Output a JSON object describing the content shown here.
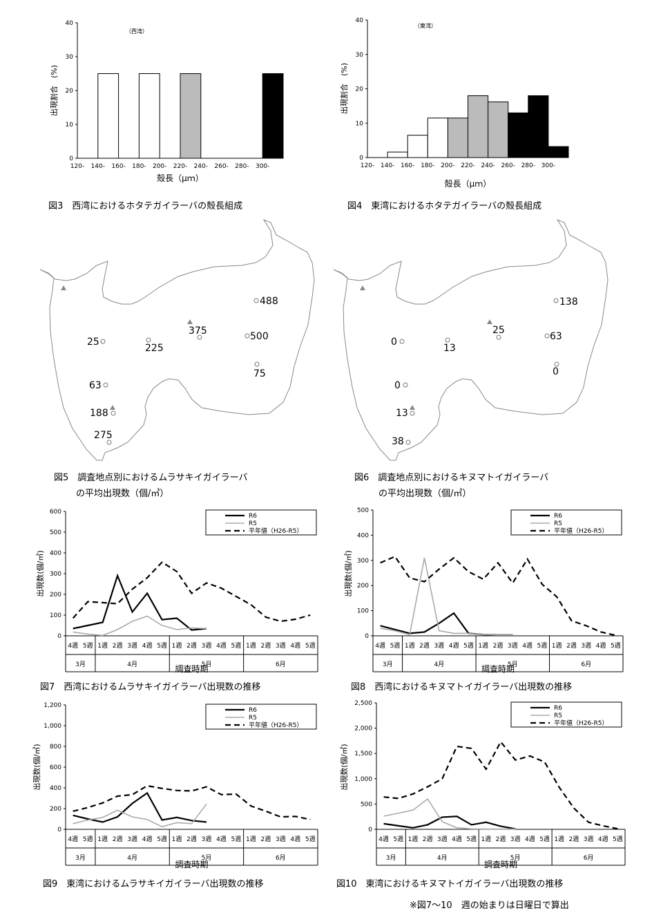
{
  "captions": {
    "fig3": "図3　西湾におけるホタテガイラーバの殻長組成",
    "fig4": "図4　東湾におけるホタテガイラーバの殻長組成",
    "fig5a": "図5　調査地点別におけるムラサキイガイラーバ",
    "fig5b": "の平均出現数（個/㎥）",
    "fig6a": "図6　調査地点別におけるキヌマトイガイラーバ",
    "fig6b": "の平均出現数（個/㎥）",
    "fig7": "図7　西湾におけるムラサキイガイラーバ出現数の推移",
    "fig8": "図8　西湾におけるキヌマトイガイラーバ出現数の推移",
    "fig9": "図9　東湾におけるムラサキイガイラーバ出現数の推移",
    "fig10": "図10　東湾におけるキヌマトイガイラーバ出現数の推移",
    "note": "※図7～10　週の始まりは日曜日で算出"
  },
  "maps": {
    "west": {
      "sites": [
        {
          "label": "488"
        },
        {
          "label": "375"
        },
        {
          "label": "500"
        },
        {
          "label": "25"
        },
        {
          "label": "225"
        },
        {
          "label": "75"
        },
        {
          "label": "63"
        },
        {
          "label": "188"
        },
        {
          "label": "275"
        }
      ]
    },
    "east": {
      "sites": [
        {
          "label": "138"
        },
        {
          "label": "25"
        },
        {
          "label": "63"
        },
        {
          "label": "0"
        },
        {
          "label": "13"
        },
        {
          "label": "0"
        },
        {
          "label": "0"
        },
        {
          "label": "13"
        },
        {
          "label": "38"
        }
      ]
    }
  },
  "chart_data": [
    {
      "id": "fig3",
      "type": "bar",
      "title": "",
      "inner_label": "（西湾）",
      "categories": [
        "120-",
        "140-",
        "160-",
        "180-",
        "200-",
        "220-",
        "240-",
        "260-",
        "280-",
        "300-"
      ],
      "values": [
        0,
        25,
        0,
        25,
        0,
        25,
        0,
        0,
        0,
        25
      ],
      "bar_fill": [
        "#fff",
        "#fff",
        "#fff",
        "#fff",
        "#fff",
        "#bbbbbb",
        "#bbbbbb",
        "#000",
        "#000",
        "#000"
      ],
      "xlabel": "殻長（μｍ）",
      "ylabel": "出現割合　(%)",
      "ylim": [
        0,
        40
      ],
      "yticks": [
        0,
        10,
        20,
        30,
        40
      ]
    },
    {
      "id": "fig4",
      "type": "bar",
      "title": "",
      "inner_label": "（東湾）",
      "categories": [
        "120-",
        "140-",
        "160-",
        "180-",
        "200-",
        "220-",
        "240-",
        "260-",
        "280-",
        "300-"
      ],
      "values": [
        0,
        1.6,
        6.5,
        11.5,
        11.5,
        18,
        16.2,
        13,
        18,
        3.2
      ],
      "bar_fill": [
        "#fff",
        "#fff",
        "#fff",
        "#fff",
        "#bbbbbb",
        "#bbbbbb",
        "#bbbbbb",
        "#000",
        "#000",
        "#000"
      ],
      "xlabel": "殻長（μｍ）",
      "ylabel": "出現割合　(%)",
      "ylim": [
        0,
        40
      ],
      "yticks": [
        0,
        10,
        20,
        30,
        40
      ]
    },
    {
      "id": "fig7",
      "type": "line",
      "weeks": [
        "4週",
        "5週",
        "1週",
        "2週",
        "3週",
        "4週",
        "5週",
        "1週",
        "2週",
        "3週",
        "4週",
        "5週",
        "1週",
        "2週",
        "3週",
        "4週",
        "5週"
      ],
      "months": [
        {
          "label": "3月",
          "span": 2
        },
        {
          "label": "4月",
          "span": 5
        },
        {
          "label": "5月",
          "span": 5
        },
        {
          "label": "6月",
          "span": 5
        }
      ],
      "xlabel": "調査時期",
      "ylabel": "出現数(個/㎥)",
      "ylim": [
        0,
        600
      ],
      "yticks": [
        "0",
        "100",
        "200",
        "300",
        "400",
        "500",
        "600"
      ],
      "series": [
        {
          "name": "R6",
          "values": [
            35,
            50,
            65,
            290,
            115,
            205,
            78,
            85,
            28,
            35,
            null,
            null,
            null,
            null,
            null,
            null,
            null
          ]
        },
        {
          "name": "R5",
          "values": [
            18,
            8,
            2,
            30,
            70,
            95,
            50,
            30,
            38,
            35,
            null,
            null,
            null,
            null,
            null,
            null,
            null
          ]
        },
        {
          "name": "平年値（H26-R5）",
          "values": [
            85,
            165,
            160,
            155,
            225,
            280,
            355,
            310,
            205,
            255,
            230,
            190,
            150,
            90,
            70,
            80,
            100
          ]
        }
      ]
    },
    {
      "id": "fig8",
      "type": "line",
      "weeks": [
        "4週",
        "5週",
        "1週",
        "2週",
        "3週",
        "4週",
        "5週",
        "1週",
        "2週",
        "3週",
        "4週",
        "5週",
        "1週",
        "2週",
        "3週",
        "4週",
        "5週"
      ],
      "months": [
        {
          "label": "3月",
          "span": 2
        },
        {
          "label": "4月",
          "span": 5
        },
        {
          "label": "5月",
          "span": 5
        },
        {
          "label": "6月",
          "span": 5
        }
      ],
      "xlabel": "調査時期",
      "ylabel": "出現数(個/㎥)",
      "ylim": [
        0,
        500
      ],
      "yticks": [
        "0",
        "100",
        "200",
        "300",
        "400",
        "500"
      ],
      "series": [
        {
          "name": "R6",
          "values": [
            40,
            25,
            10,
            15,
            50,
            90,
            10,
            5,
            3,
            3,
            null,
            null,
            null,
            null,
            null,
            null,
            null
          ]
        },
        {
          "name": "R5",
          "values": [
            30,
            20,
            5,
            310,
            20,
            10,
            10,
            5,
            3,
            3,
            null,
            null,
            null,
            null,
            null,
            null,
            null
          ]
        },
        {
          "name": "平年値（H26-R5）",
          "values": [
            290,
            315,
            230,
            215,
            265,
            310,
            255,
            225,
            290,
            210,
            305,
            205,
            155,
            60,
            40,
            15,
            2
          ]
        }
      ]
    },
    {
      "id": "fig9",
      "type": "line",
      "weeks": [
        "4週",
        "5週",
        "1週",
        "2週",
        "3週",
        "4週",
        "5週",
        "1週",
        "2週",
        "3週",
        "4週",
        "5週",
        "1週",
        "2週",
        "3週",
        "4週",
        "5週"
      ],
      "months": [
        {
          "label": "3月",
          "span": 2
        },
        {
          "label": "4月",
          "span": 5
        },
        {
          "label": "5月",
          "span": 5
        },
        {
          "label": "6月",
          "span": 5
        }
      ],
      "xlabel": "調査時期",
      "ylabel": "出現数(個/㎥)",
      "ylim": [
        0,
        1200
      ],
      "yticks": [
        "0",
        "200",
        "400",
        "600",
        "800",
        "1,000",
        "1,200"
      ],
      "series": [
        {
          "name": "R6",
          "values": [
            135,
            100,
            70,
            120,
            250,
            350,
            90,
            115,
            85,
            70,
            null,
            null,
            null,
            null,
            null,
            null,
            null
          ]
        },
        {
          "name": "R5",
          "values": [
            55,
            90,
            115,
            185,
            120,
            95,
            25,
            65,
            55,
            245,
            null,
            null,
            null,
            null,
            null,
            null,
            null
          ]
        },
        {
          "name": "平年値（H26-R5）",
          "values": [
            175,
            210,
            255,
            320,
            335,
            420,
            395,
            375,
            370,
            410,
            335,
            340,
            225,
            175,
            120,
            125,
            95
          ]
        }
      ]
    },
    {
      "id": "fig10",
      "type": "line",
      "weeks": [
        "4週",
        "5週",
        "1週",
        "2週",
        "3週",
        "4週",
        "5週",
        "1週",
        "2週",
        "3週",
        "4週",
        "5週",
        "1週",
        "2週",
        "3週",
        "4週",
        "5週"
      ],
      "months": [
        {
          "label": "3月",
          "span": 2
        },
        {
          "label": "4月",
          "span": 5
        },
        {
          "label": "5月",
          "span": 5
        },
        {
          "label": "6月",
          "span": 5
        }
      ],
      "xlabel": "調査時期",
      "ylabel": "出現数(個/㎥)",
      "ylim": [
        0,
        2500
      ],
      "yticks": [
        "0",
        "500",
        "1,000",
        "1,500",
        "2,000",
        "2,500"
      ],
      "series": [
        {
          "name": "R6",
          "values": [
            110,
            70,
            30,
            90,
            240,
            255,
            90,
            140,
            60,
            10,
            null,
            null,
            null,
            null,
            null,
            null,
            null
          ]
        },
        {
          "name": "R5",
          "values": [
            260,
            320,
            380,
            600,
            150,
            30,
            10,
            5,
            5,
            5,
            null,
            null,
            null,
            null,
            null,
            null,
            null
          ]
        },
        {
          "name": "平年値（H26-R5）",
          "values": [
            640,
            610,
            700,
            840,
            1000,
            1640,
            1600,
            1190,
            1730,
            1370,
            1450,
            1330,
            830,
            420,
            140,
            70,
            10
          ]
        }
      ]
    }
  ]
}
